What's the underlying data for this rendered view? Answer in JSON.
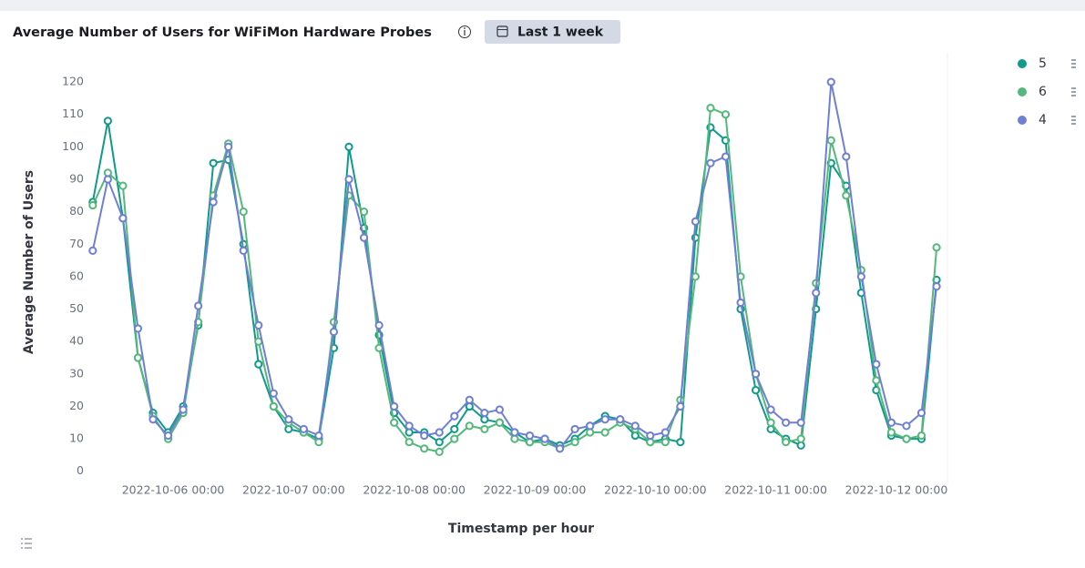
{
  "chart_data": {
    "type": "line",
    "title": "Average Number of Users for WiFiMon Hardware Probes",
    "time_range": "Last 1 week",
    "x_label": "Timestamp per hour",
    "y_label": "Average Number of Users",
    "x": [
      "2022-10-05 08:00",
      "2022-10-05 11:00",
      "2022-10-05 14:00",
      "2022-10-05 17:00",
      "2022-10-05 20:00",
      "2022-10-05 23:00",
      "2022-10-06 02:00",
      "2022-10-06 05:00",
      "2022-10-06 08:00",
      "2022-10-06 11:00",
      "2022-10-06 14:00",
      "2022-10-06 17:00",
      "2022-10-06 20:00",
      "2022-10-06 23:00",
      "2022-10-07 02:00",
      "2022-10-07 05:00",
      "2022-10-07 08:00",
      "2022-10-07 11:00",
      "2022-10-07 14:00",
      "2022-10-07 17:00",
      "2022-10-07 20:00",
      "2022-10-07 23:00",
      "2022-10-08 02:00",
      "2022-10-08 05:00",
      "2022-10-08 08:00",
      "2022-10-08 11:00",
      "2022-10-08 14:00",
      "2022-10-08 17:00",
      "2022-10-08 20:00",
      "2022-10-08 23:00",
      "2022-10-09 02:00",
      "2022-10-09 05:00",
      "2022-10-09 08:00",
      "2022-10-09 11:00",
      "2022-10-09 14:00",
      "2022-10-09 17:00",
      "2022-10-09 20:00",
      "2022-10-09 23:00",
      "2022-10-10 02:00",
      "2022-10-10 05:00",
      "2022-10-10 08:00",
      "2022-10-10 11:00",
      "2022-10-10 14:00",
      "2022-10-10 17:00",
      "2022-10-10 20:00",
      "2022-10-10 23:00",
      "2022-10-11 02:00",
      "2022-10-11 05:00",
      "2022-10-11 08:00",
      "2022-10-11 11:00",
      "2022-10-11 14:00",
      "2022-10-11 17:00",
      "2022-10-11 20:00",
      "2022-10-11 23:00",
      "2022-10-12 02:00",
      "2022-10-12 05:00",
      "2022-10-12 08:00"
    ],
    "series": [
      {
        "name": "5",
        "color": "#0f9a8a",
        "values": [
          83,
          108,
          78,
          35,
          18,
          12,
          20,
          45,
          95,
          96,
          70,
          33,
          20,
          13,
          12,
          10,
          38,
          100,
          75,
          42,
          18,
          12,
          12,
          9,
          13,
          20,
          16,
          15,
          12,
          9,
          10,
          8,
          10,
          14,
          17,
          16,
          11,
          9,
          10,
          9,
          72,
          106,
          102,
          50,
          25,
          13,
          10,
          8,
          50,
          95,
          88,
          55,
          25,
          11,
          10,
          10,
          59
        ]
      },
      {
        "name": "6",
        "color": "#54b87a",
        "values": [
          82,
          92,
          88,
          35,
          17,
          10,
          18,
          46,
          85,
          101,
          80,
          40,
          20,
          15,
          12,
          9,
          46,
          85,
          80,
          38,
          15,
          9,
          7,
          6,
          10,
          14,
          13,
          15,
          10,
          9,
          9,
          7,
          9,
          12,
          12,
          15,
          13,
          9,
          9,
          22,
          60,
          112,
          110,
          60,
          30,
          15,
          9,
          10,
          58,
          102,
          85,
          62,
          28,
          12,
          10,
          11,
          69
        ]
      },
      {
        "name": "4",
        "color": "#6f7fd6",
        "values": [
          68,
          90,
          78,
          44,
          16,
          11,
          19,
          51,
          83,
          100,
          68,
          45,
          24,
          16,
          13,
          11,
          43,
          90,
          72,
          45,
          20,
          14,
          11,
          12,
          17,
          22,
          18,
          19,
          12,
          11,
          10,
          7,
          13,
          14,
          16,
          16,
          14,
          11,
          12,
          20,
          77,
          95,
          97,
          52,
          30,
          19,
          15,
          15,
          55,
          120,
          97,
          60,
          33,
          15,
          14,
          18,
          57
        ]
      }
    ],
    "xlim": [
      "2022-10-05 07:40",
      "2022-10-12 10:10"
    ],
    "xticks": [
      "2022-10-06 00:00",
      "2022-10-07 00:00",
      "2022-10-08 00:00",
      "2022-10-09 00:00",
      "2022-10-10 00:00",
      "2022-10-11 00:00",
      "2022-10-12 00:00"
    ],
    "ylim": [
      -4,
      129
    ],
    "yticks": [
      0,
      10,
      20,
      30,
      40,
      50,
      60,
      70,
      80,
      90,
      100,
      110,
      120
    ],
    "legend": "right"
  }
}
